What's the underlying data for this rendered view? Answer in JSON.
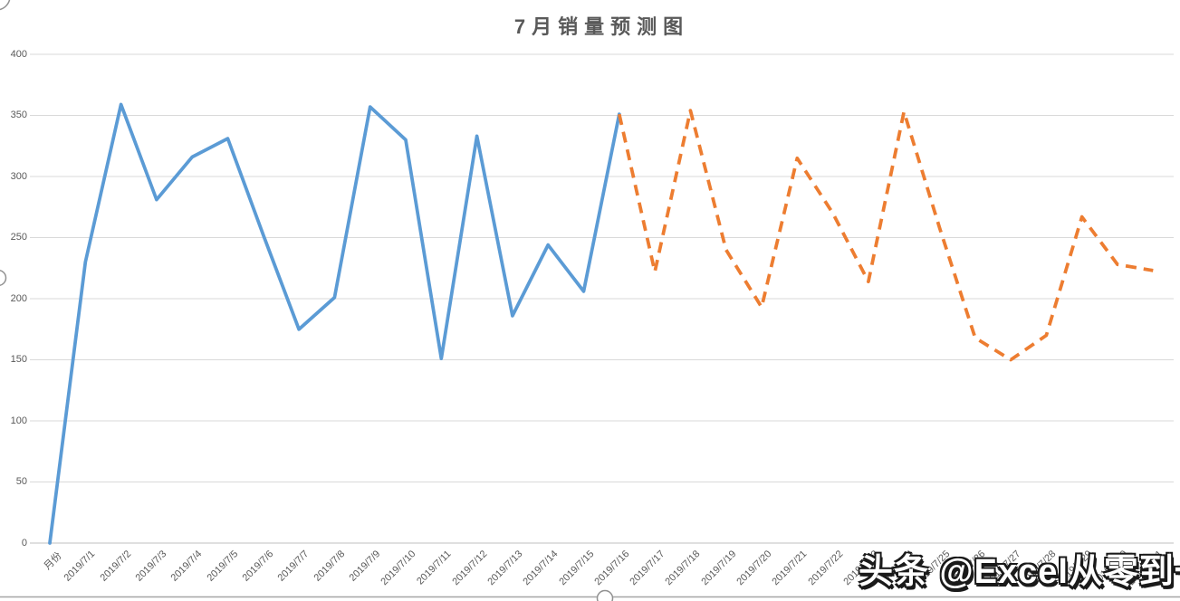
{
  "title": "7月销量预测图",
  "watermark": "头条 @Excel从零到一",
  "colors": {
    "actual_line": "#5B9BD5",
    "forecast_line": "#ED7D31",
    "gridline": "#D9D9D9",
    "axis_line": "#BFBFBF",
    "axis_text": "#595959",
    "title_text": "#595959",
    "chart_border": "#A6A6A6",
    "handle_stroke": "#919191"
  },
  "y_axis": {
    "tick_labels": [
      "400",
      "350",
      "300",
      "250",
      "200",
      "150",
      "100",
      "50",
      "0"
    ],
    "min": 0,
    "max": 400,
    "step": 50
  },
  "x_axis": {
    "categories": [
      "月份",
      "2019/7/1",
      "2019/7/2",
      "2019/7/3",
      "2019/7/4",
      "2019/7/5",
      "2019/7/6",
      "2019/7/7",
      "2019/7/8",
      "2019/7/9",
      "2019/7/10",
      "2019/7/11",
      "2019/7/12",
      "2019/7/13",
      "2019/7/14",
      "2019/7/15",
      "2019/7/16",
      "2019/7/17",
      "2019/7/18",
      "2019/7/19",
      "2019/7/20",
      "2019/7/21",
      "2019/7/22",
      "2019/7/23",
      "2019/7/24",
      "2019/7/25",
      "2019/7/26",
      "2019/7/27",
      "2019/7/28",
      "2019/7/29",
      "2019/7/30",
      "2019/7/31"
    ],
    "label_rotation_deg": 45
  },
  "chart_data": {
    "type": "line",
    "title": "7月销量预测图",
    "xlabel": "",
    "ylabel": "",
    "ylim": [
      0,
      400
    ],
    "y_step": 50,
    "grid": "horizontal",
    "legend": "none",
    "categories": [
      "月份",
      "2019/7/1",
      "2019/7/2",
      "2019/7/3",
      "2019/7/4",
      "2019/7/5",
      "2019/7/6",
      "2019/7/7",
      "2019/7/8",
      "2019/7/9",
      "2019/7/10",
      "2019/7/11",
      "2019/7/12",
      "2019/7/13",
      "2019/7/14",
      "2019/7/15",
      "2019/7/16",
      "2019/7/17",
      "2019/7/18",
      "2019/7/19",
      "2019/7/20",
      "2019/7/21",
      "2019/7/22",
      "2019/7/23",
      "2019/7/24",
      "2019/7/25",
      "2019/7/26",
      "2019/7/27",
      "2019/7/28",
      "2019/7/29",
      "2019/7/30",
      "2019/7/31"
    ],
    "series": [
      {
        "name": "sales-actual-solid-blue",
        "color": "#5B9BD5",
        "line_style": "solid",
        "values": [
          0,
          230,
          359,
          281,
          316,
          331,
          252,
          175,
          201,
          357,
          330,
          151,
          333,
          186,
          244,
          206,
          351,
          null,
          null,
          null,
          null,
          null,
          null,
          null,
          null,
          null,
          null,
          null,
          null,
          null,
          null,
          null
        ]
      },
      {
        "name": "sales-forecast-dashed-orange",
        "color": "#ED7D31",
        "line_style": "dashed",
        "values": [
          null,
          null,
          null,
          null,
          null,
          null,
          null,
          null,
          null,
          null,
          null,
          null,
          null,
          null,
          null,
          null,
          351,
          222,
          354,
          240,
          193,
          315,
          270,
          214,
          353,
          258,
          168,
          150,
          170,
          267,
          228,
          223
        ]
      }
    ]
  }
}
